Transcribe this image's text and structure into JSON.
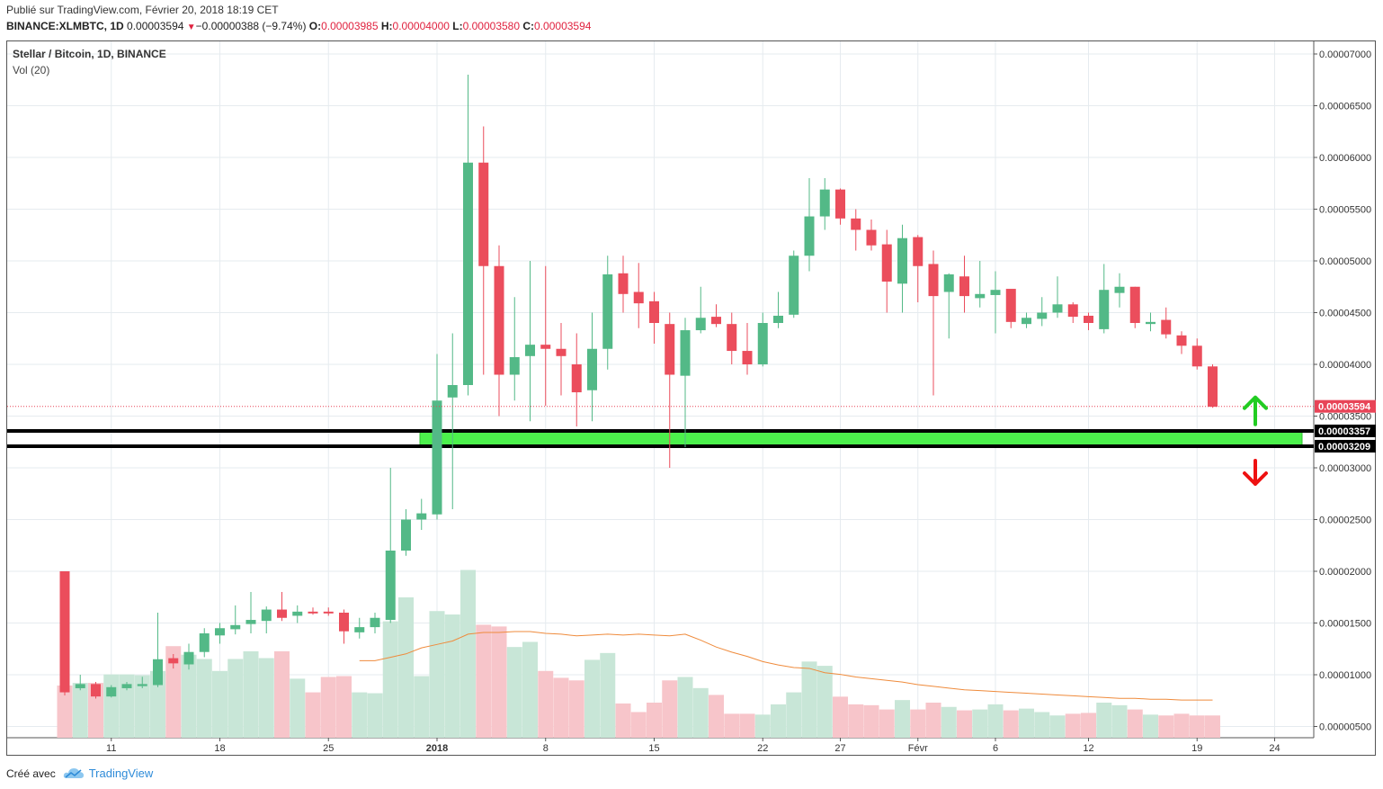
{
  "header": {
    "published": "Publié sur TradingView.com, Février 20, 2018 18:19 CET",
    "symbol": "BINANCE:XLMBTC, 1D",
    "price": "0.00003594",
    "change": "−0.00000388 (−9.74%)",
    "open_label": "O:",
    "open": "0.00003985",
    "high_label": "H:",
    "high": "0.00004000",
    "low_label": "L:",
    "low": "0.00003580",
    "close_label": "C:",
    "close": "0.00003594"
  },
  "legend": {
    "title": "Stellar / Bitcoin, 1D, BINANCE",
    "indicator": "Vol (20)"
  },
  "footer": {
    "created_with": "Créé avec",
    "brand": "TradingView"
  },
  "colors": {
    "up": "#53b987",
    "down": "#eb4d5c",
    "vol_up": "#c8e6d7",
    "vol_down": "#f7c5ca",
    "vol_ma": "#ef8b3c",
    "zone": "#4cf04c",
    "arrow_up": "#22cc22",
    "arrow_down": "#ee1111",
    "price_tag": "#e84457"
  },
  "chart_data": {
    "type": "candlestick",
    "title": "Stellar / Bitcoin, 1D, BINANCE",
    "yaxis_ticks": [
      "0.00000500",
      "0.00001000",
      "0.00001500",
      "0.00002000",
      "0.00002500",
      "0.00003000",
      "0.00003500",
      "0.00004000",
      "0.00004500",
      "0.00005000",
      "0.00005500",
      "0.00006000",
      "0.00006500",
      "0.00007000"
    ],
    "ylim": [
      9e-07,
      7.2e-06
    ],
    "xaxis_ticks": [
      "11",
      "18",
      "25",
      "2018",
      "8",
      "15",
      "22",
      "27",
      "Févr",
      "6",
      "12",
      "19",
      "24"
    ],
    "xaxis_tick_days": [
      3,
      10,
      17,
      24,
      31,
      38,
      45,
      50,
      55,
      60,
      66,
      73,
      78
    ],
    "candles_ohlc": [
      [
        2e-05,
        2e-05,
        8e-06,
        8.3e-06
      ],
      [
        8.7e-06,
        1e-05,
        8.5e-06,
        9.1e-06
      ],
      [
        9.1e-06,
        9.3e-06,
        7.7e-06,
        7.9e-06
      ],
      [
        7.9e-06,
        9e-06,
        7.8e-06,
        8.8e-06
      ],
      [
        8.7e-06,
        9.3e-06,
        8.5e-06,
        9.1e-06
      ],
      [
        8.9e-06,
        9.8e-06,
        8.7e-06,
        9.1e-06
      ],
      [
        9e-06,
        1.6e-05,
        8.8e-06,
        1.15e-05
      ],
      [
        1.16e-05,
        1.2e-05,
        1.06e-05,
        1.11e-05
      ],
      [
        1.1e-05,
        1.3e-05,
        1.05e-05,
        1.22e-05
      ],
      [
        1.22e-05,
        1.45e-05,
        1.17e-05,
        1.4e-05
      ],
      [
        1.38e-05,
        1.5e-05,
        1.3e-05,
        1.45e-05
      ],
      [
        1.44e-05,
        1.67e-05,
        1.39e-05,
        1.48e-05
      ],
      [
        1.49e-05,
        1.8e-05,
        1.4e-05,
        1.53e-05
      ],
      [
        1.52e-05,
        1.66e-05,
        1.4e-05,
        1.63e-05
      ],
      [
        1.63e-05,
        1.8e-05,
        1.52e-05,
        1.55e-05
      ],
      [
        1.57e-05,
        1.67e-05,
        1.5e-05,
        1.61e-05
      ],
      [
        1.61e-05,
        1.65e-05,
        1.58e-05,
        1.6e-05
      ],
      [
        1.61e-05,
        1.65e-05,
        1.57e-05,
        1.6e-05
      ],
      [
        1.6e-05,
        1.63e-05,
        1.3e-05,
        1.42e-05
      ],
      [
        1.41e-05,
        1.55e-05,
        1.35e-05,
        1.46e-05
      ],
      [
        1.46e-05,
        1.6e-05,
        1.4e-05,
        1.55e-05
      ],
      [
        1.53e-05,
        3e-05,
        1.5e-05,
        2.2e-05
      ],
      [
        2.2e-05,
        2.6e-05,
        2.15e-05,
        2.5e-05
      ],
      [
        2.5e-05,
        2.7e-05,
        2.4e-05,
        2.56e-05
      ],
      [
        2.55e-05,
        4.1e-05,
        2.5e-05,
        3.65e-05
      ],
      [
        3.68e-05,
        4.3e-05,
        2.6e-05,
        3.8e-05
      ],
      [
        3.8e-05,
        6.8e-05,
        3.7e-05,
        5.95e-05
      ],
      [
        5.95e-05,
        6.3e-05,
        3.9e-05,
        4.95e-05
      ],
      [
        4.95e-05,
        5.15e-05,
        3.5e-05,
        3.9e-05
      ],
      [
        3.9e-05,
        4.65e-05,
        3.65e-05,
        4.07e-05
      ],
      [
        4.08e-05,
        5e-05,
        3.45e-05,
        4.19e-05
      ],
      [
        4.19e-05,
        4.95e-05,
        3.6e-05,
        4.15e-05
      ],
      [
        4.15e-05,
        4.4e-05,
        3.7e-05,
        4.08e-05
      ],
      [
        4e-05,
        4.3e-05,
        3.4e-05,
        3.73e-05
      ],
      [
        3.75e-05,
        4.5e-05,
        3.45e-05,
        4.15e-05
      ],
      [
        4.15e-05,
        5.05e-05,
        3.95e-05,
        4.87e-05
      ],
      [
        4.88e-05,
        5.05e-05,
        4.5e-05,
        4.68e-05
      ],
      [
        4.7e-05,
        4.98e-05,
        4.35e-05,
        4.59e-05
      ],
      [
        4.61e-05,
        4.7e-05,
        4.2e-05,
        4.4e-05
      ],
      [
        4.39e-05,
        4.5e-05,
        3e-05,
        3.9e-05
      ],
      [
        3.89e-05,
        4.45e-05,
        3.2e-05,
        4.33e-05
      ],
      [
        4.33e-05,
        4.75e-05,
        4.3e-05,
        4.45e-05
      ],
      [
        4.46e-05,
        4.58e-05,
        4.36e-05,
        4.39e-05
      ],
      [
        4.39e-05,
        4.5e-05,
        4e-05,
        4.13e-05
      ],
      [
        4.13e-05,
        4.4e-05,
        3.9e-05,
        4e-05
      ],
      [
        4e-05,
        4.5e-05,
        3.98e-05,
        4.4e-05
      ],
      [
        4.4e-05,
        4.7e-05,
        4.35e-05,
        4.47e-05
      ],
      [
        4.48e-05,
        5.1e-05,
        4.45e-05,
        5.05e-05
      ],
      [
        5.05e-05,
        5.8e-05,
        4.9e-05,
        5.43e-05
      ],
      [
        5.43e-05,
        5.8e-05,
        5.3e-05,
        5.69e-05
      ],
      [
        5.69e-05,
        5.7e-05,
        5.35e-05,
        5.41e-05
      ],
      [
        5.41e-05,
        5.5e-05,
        5.1e-05,
        5.3e-05
      ],
      [
        5.3e-05,
        5.4e-05,
        5.1e-05,
        5.15e-05
      ],
      [
        5.16e-05,
        5.3e-05,
        4.5e-05,
        4.8e-05
      ],
      [
        4.78e-05,
        5.35e-05,
        4.5e-05,
        5.22e-05
      ],
      [
        5.23e-05,
        5.25e-05,
        4.6e-05,
        4.95e-05
      ],
      [
        4.97e-05,
        5.1e-05,
        3.7e-05,
        4.66e-05
      ],
      [
        4.7e-05,
        4.88e-05,
        4.25e-05,
        4.87e-05
      ],
      [
        4.85e-05,
        5.05e-05,
        4.5e-05,
        4.66e-05
      ],
      [
        4.64e-05,
        5e-05,
        4.55e-05,
        4.68e-05
      ],
      [
        4.67e-05,
        4.9e-05,
        4.3e-05,
        4.72e-05
      ],
      [
        4.73e-05,
        4.72e-05,
        4.35e-05,
        4.41e-05
      ],
      [
        4.39e-05,
        4.5e-05,
        4.35e-05,
        4.45e-05
      ],
      [
        4.44e-05,
        4.65e-05,
        4.37e-05,
        4.5e-05
      ],
      [
        4.5e-05,
        4.85e-05,
        4.45e-05,
        4.58e-05
      ],
      [
        4.58e-05,
        4.6e-05,
        4.4e-05,
        4.46e-05
      ],
      [
        4.47e-05,
        4.5e-05,
        4.33e-05,
        4.4e-05
      ],
      [
        4.34e-05,
        4.97e-05,
        4.3e-05,
        4.72e-05
      ],
      [
        4.69e-05,
        4.88e-05,
        4.55e-05,
        4.75e-05
      ],
      [
        4.75e-05,
        4.75e-05,
        4.35e-05,
        4.4e-05
      ],
      [
        4.39e-05,
        4.5e-05,
        4.32e-05,
        4.41e-05
      ],
      [
        4.43e-05,
        4.55e-05,
        4.25e-05,
        4.29e-05
      ],
      [
        4.28e-05,
        4.32e-05,
        4.1e-05,
        4.18e-05
      ],
      [
        4.18e-05,
        4.25e-05,
        3.95e-05,
        3.98e-05
      ],
      [
        3.98e-05,
        4e-05,
        3.58e-05,
        3.59e-05
      ]
    ],
    "volume": [
      6.1e-06,
      6.4e-06,
      6.4e-06,
      7.4e-06,
      7.4e-06,
      7.3e-06,
      7.8e-06,
      1.07e-05,
      9.7e-06,
      9.2e-06,
      7.8e-06,
      9.2e-06,
      1.01e-05,
      9.3e-06,
      1.01e-05,
      6.9e-06,
      5.3e-06,
      7.1e-06,
      7.2e-06,
      5.3e-06,
      5.2e-06,
      1.36e-05,
      1.64e-05,
      7.2e-06,
      1.48e-05,
      1.44e-05,
      1.96e-05,
      1.32e-05,
      1.3e-05,
      1.06e-05,
      1.12e-05,
      7.8e-06,
      7e-06,
      6.7e-06,
      9.1e-06,
      9.9e-06,
      4e-06,
      3e-06,
      4.1e-06,
      6.7e-06,
      7.1e-06,
      5.8e-06,
      5e-06,
      2.8e-06,
      2.8e-06,
      2.7e-06,
      3.9e-06,
      5.3e-06,
      8.9e-06,
      8.4e-06,
      4.8e-06,
      3.9e-06,
      3.8e-06,
      3.3e-06,
      4.4e-06,
      3.3e-06,
      4.1e-06,
      3.6e-06,
      3.2e-06,
      3.3e-06,
      3.9e-06,
      3.2e-06,
      3.4e-06,
      3e-06,
      2.6e-06,
      2.8e-06,
      2.9e-06,
      4.1e-06,
      3.8e-06,
      3.3e-06,
      2.7e-06,
      2.6e-06,
      2.8e-06,
      2.6e-06,
      2.6e-06
    ],
    "vol_ma_start_index": 19,
    "vol_ma": [
      9e-06,
      9e-06,
      9.4e-06,
      9.8e-06,
      1.05e-05,
      1.09e-05,
      1.13e-05,
      1.21e-05,
      1.23e-05,
      1.23e-05,
      1.24e-05,
      1.24e-05,
      1.22e-05,
      1.21e-05,
      1.19e-05,
      1.2e-05,
      1.21e-05,
      1.2e-05,
      1.21e-05,
      1.2e-05,
      1.19e-05,
      1.21e-05,
      1.14e-05,
      1.06e-05,
      1e-05,
      9.5e-06,
      8.9e-06,
      8.5e-06,
      8.2e-06,
      8.1e-06,
      7.6e-06,
      7.4e-06,
      7.1e-06,
      6.9e-06,
      6.7e-06,
      6.5e-06,
      6.2e-06,
      6e-06,
      5.8e-06,
      5.6e-06,
      5.5e-06,
      5.4e-06,
      5.3e-06,
      5.2e-06,
      5.1e-06,
      5e-06,
      4.9e-06,
      4.8e-06,
      4.7e-06,
      4.6e-06,
      4.6e-06,
      4.5e-06,
      4.5e-06,
      4.4e-06,
      4.4e-06,
      4.4e-06
    ],
    "current_price_line": 3.594e-05,
    "support_zone": [
      3.209e-05,
      3.357e-05
    ],
    "horizontal_levels": [
      3.357e-05,
      3.209e-05
    ],
    "price_labels": [
      "0.00003594",
      "0.00003357",
      "0.00003209"
    ]
  }
}
